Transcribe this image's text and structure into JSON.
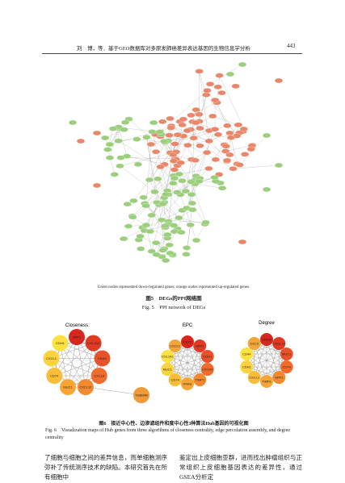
{
  "header": {
    "running_title": "刘　博，等．基于GEO数据库对多原发肺癌差异表达基因的生物信息学分析",
    "page_number": "443"
  },
  "figure5": {
    "note": "Green nodes represented down-regulated genes; orange nodes represented up-regulated genes.",
    "caption_cn": "图5　DEGs的PPI网络图",
    "caption_en": "Fig. 5　PPI network of DEGs"
  },
  "figure6": {
    "panels": [
      {
        "title": "Closeness",
        "nodes": [
          "SPP1",
          "COL1A1",
          "KRAS",
          "CXCL8",
          "CXCL12",
          "MUC1",
          "CD74",
          "CXCL1",
          "CDH1",
          "TUBB4B"
        ]
      },
      {
        "title": "EPC",
        "nodes": [
          "CCL5",
          "SPP1",
          "CDH1",
          "CXCR4",
          "TIMP1",
          "KRAS",
          "CD74",
          "MUC1",
          "COL1A1",
          "CXCL1"
        ]
      },
      {
        "title": "Degree",
        "nodes": [
          "KRAS",
          "CXCL12",
          "MUC1",
          "CD74",
          "SPP1",
          "TIMP1",
          "CXCL1",
          "CDH1",
          "CD44",
          "CCL5"
        ]
      }
    ],
    "caption_cn": "图6　接近中心性、边渗滤组件和度中心性3种算法Hub基因的可视化图",
    "caption_en": "Fig. 6　Visualization maps of Hub genes from three algorithms of closeness centrality, edge percolation assembly, and degree centrality"
  },
  "body": {
    "left": "了细胞与细胞之间的差异信息，而单细胞测序弥补了传统测序技术的缺陷。本研究首先在所有细胞中",
    "right": "鉴定出上皮细胞亚群，进而找出肿瘤组织与正常组织上皮细胞基因表达的差异性，通过GSEA分析定"
  }
}
